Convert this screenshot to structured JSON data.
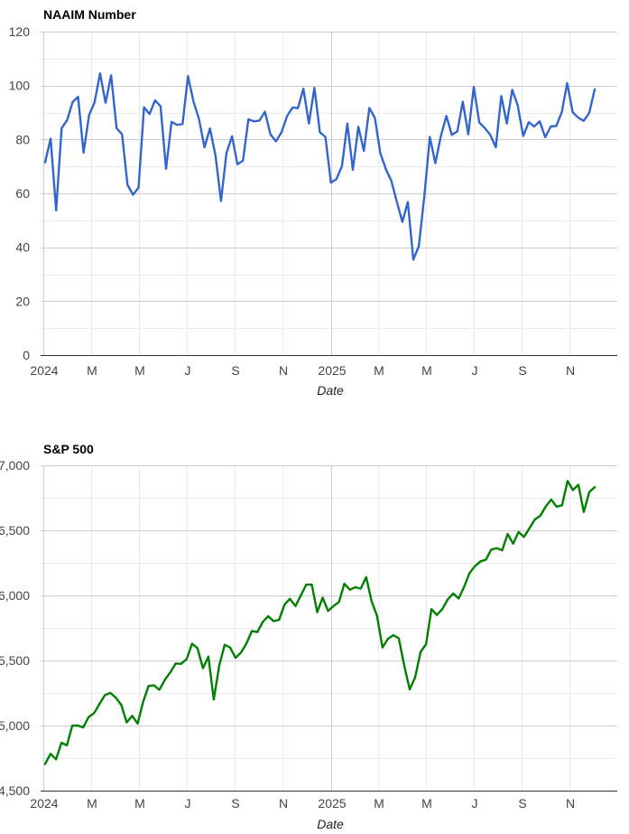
{
  "chart_data": [
    {
      "type": "line",
      "title": "NAAIM Number",
      "xlabel": "Date",
      "ylabel": "",
      "ylim": [
        0,
        120
      ],
      "y_ticks": [
        0,
        20,
        40,
        60,
        80,
        100,
        120
      ],
      "y_tick_labels": [
        "0",
        "20",
        "40",
        "60",
        "80",
        "100",
        "120"
      ],
      "x_tick_labels": [
        "2024",
        "M",
        "M",
        "J",
        "S",
        "N",
        "2025",
        "M",
        "M",
        "J",
        "S",
        "N"
      ],
      "grid": true,
      "color": "#3366cc",
      "series": [
        {
          "name": "NAAIM Number",
          "values": [
            71.5,
            80.3,
            53.7,
            84.2,
            87.2,
            93.9,
            95.8,
            75.1,
            89.0,
            93.8,
            104.5,
            93.6,
            103.8,
            84.2,
            81.9,
            63.2,
            59.5,
            62.1,
            91.9,
            89.4,
            94.5,
            92.3,
            69.1,
            86.5,
            85.4,
            85.7,
            103.5,
            94.1,
            87.6,
            77.1,
            84.1,
            74.0,
            57.2,
            75.0,
            81.2,
            70.8,
            72.1,
            87.5,
            86.7,
            87.0,
            90.3,
            81.9,
            79.3,
            82.6,
            88.6,
            91.8,
            91.6,
            98.8,
            85.9,
            99.2,
            82.7,
            80.9,
            64.0,
            65.3,
            70.1,
            85.9,
            68.7,
            84.7,
            75.8,
            91.7,
            88.0,
            74.8,
            69.0,
            64.6,
            56.8,
            49.4,
            56.8,
            35.4,
            40.4,
            58.9,
            80.9,
            71.2,
            81.2,
            88.7,
            81.7,
            83.0,
            94.0,
            81.9,
            99.5,
            86.3,
            84.2,
            81.7,
            77.1,
            96.1,
            85.9,
            98.4,
            92.6,
            81.3,
            86.4,
            84.8,
            86.7,
            80.8,
            84.8,
            85.0,
            90.1,
            100.9,
            90.1,
            88.1,
            86.9,
            89.8,
            98.6
          ]
        }
      ]
    },
    {
      "type": "line",
      "title": "S&P 500",
      "xlabel": "Date",
      "ylabel": "",
      "ylim": [
        4500,
        7000
      ],
      "y_ticks": [
        4500,
        5000,
        5500,
        6000,
        6500,
        7000
      ],
      "y_tick_labels": [
        "4,500",
        "5,000",
        "5,500",
        "6,000",
        "6,500",
        "7,000"
      ],
      "x_tick_labels": [
        "2024",
        "M",
        "M",
        "J",
        "S",
        "N",
        "2025",
        "M",
        "M",
        "J",
        "S",
        "N"
      ],
      "grid": true,
      "color": "#008000",
      "series": [
        {
          "name": "S&P 500",
          "values": [
            4705,
            4783,
            4740,
            4868,
            4848,
            4999,
            5000,
            4986,
            5065,
            5096,
            5167,
            5235,
            5251,
            5214,
            5159,
            5024,
            5075,
            5015,
            5180,
            5304,
            5310,
            5275,
            5352,
            5409,
            5477,
            5474,
            5510,
            5629,
            5595,
            5441,
            5530,
            5201,
            5463,
            5621,
            5599,
            5521,
            5562,
            5631,
            5727,
            5718,
            5797,
            5840,
            5802,
            5813,
            5930,
            5974,
            5918,
            6001,
            6084,
            6083,
            5872,
            5983,
            5881,
            5919,
            5949,
            6090,
            6044,
            6063,
            6052,
            6141,
            5955,
            5843,
            5600,
            5667,
            5695,
            5670,
            5459,
            5278,
            5370,
            5565,
            5625,
            5895,
            5850,
            5896,
            5970,
            6015,
            5977,
            6066,
            6173,
            6225,
            6262,
            6275,
            6353,
            6364,
            6347,
            6472,
            6398,
            6488,
            6450,
            6515,
            6584,
            6612,
            6683,
            6737,
            6682,
            6693,
            6880,
            6810,
            6851,
            6642,
            6795,
            6832
          ]
        }
      ]
    }
  ]
}
